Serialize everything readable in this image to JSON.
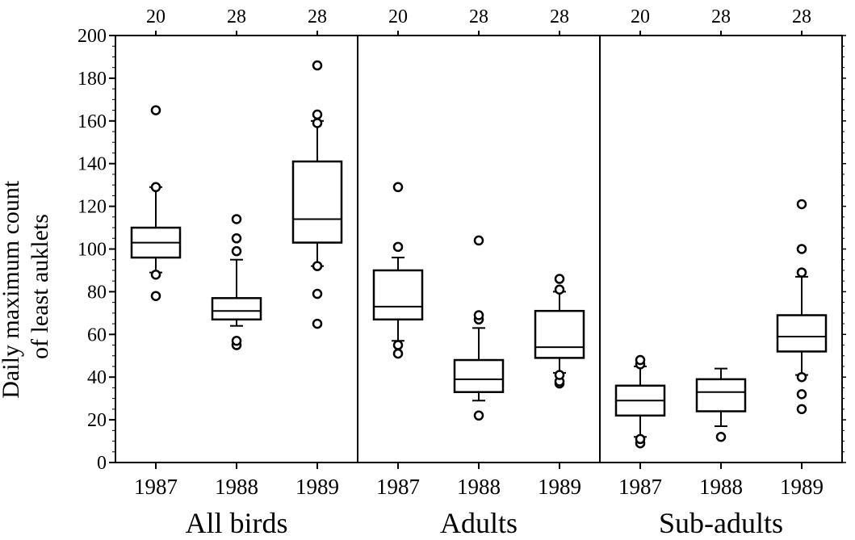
{
  "chart_data": {
    "type": "box",
    "ylabel_lines": [
      "Daily maximum count",
      "of least auklets"
    ],
    "ylim": [
      0,
      200
    ],
    "yticks": [
      0,
      20,
      40,
      60,
      80,
      100,
      120,
      140,
      160,
      180,
      200
    ],
    "panels": [
      {
        "name": "All birds",
        "boxes": [
          {
            "year": "1987",
            "n": "20",
            "whisker_low": 89,
            "q1": 96,
            "median": 103,
            "q3": 110,
            "whisker_high": 129,
            "outliers": [
              78,
              88,
              129,
              165
            ]
          },
          {
            "year": "1988",
            "n": "28",
            "whisker_low": 64,
            "q1": 67,
            "median": 71,
            "q3": 77,
            "whisker_high": 95,
            "outliers": [
              55,
              57,
              99,
              105,
              114
            ]
          },
          {
            "year": "1989",
            "n": "28",
            "whisker_low": 92,
            "q1": 103,
            "median": 114,
            "q3": 141,
            "whisker_high": 160,
            "outliers": [
              65,
              79,
              92,
              159,
              163,
              186
            ]
          }
        ]
      },
      {
        "name": "Adults",
        "boxes": [
          {
            "year": "1987",
            "n": "20",
            "whisker_low": 57,
            "q1": 67,
            "median": 73,
            "q3": 90,
            "whisker_high": 96,
            "outliers": [
              51,
              55,
              101,
              129
            ]
          },
          {
            "year": "1988",
            "n": "28",
            "whisker_low": 29,
            "q1": 33,
            "median": 39,
            "q3": 48,
            "whisker_high": 63,
            "outliers": [
              22,
              67,
              69,
              104
            ]
          },
          {
            "year": "1989",
            "n": "28",
            "whisker_low": 42,
            "q1": 49,
            "median": 54,
            "q3": 71,
            "whisker_high": 80,
            "outliers": [
              37,
              38,
              41,
              81,
              86
            ]
          }
        ]
      },
      {
        "name": "Sub-adults",
        "boxes": [
          {
            "year": "1987",
            "n": "20",
            "whisker_low": 12,
            "q1": 22,
            "median": 29,
            "q3": 36,
            "whisker_high": 45,
            "outliers": [
              9,
              11,
              46,
              48
            ]
          },
          {
            "year": "1988",
            "n": "28",
            "whisker_low": 17,
            "q1": 24,
            "median": 33,
            "q3": 39,
            "whisker_high": 44,
            "outliers": [
              12
            ]
          },
          {
            "year": "1989",
            "n": "28",
            "whisker_low": 41,
            "q1": 52,
            "median": 59,
            "q3": 69,
            "whisker_high": 87,
            "outliers": [
              25,
              32,
              40,
              89,
              100,
              121
            ]
          }
        ]
      }
    ]
  }
}
